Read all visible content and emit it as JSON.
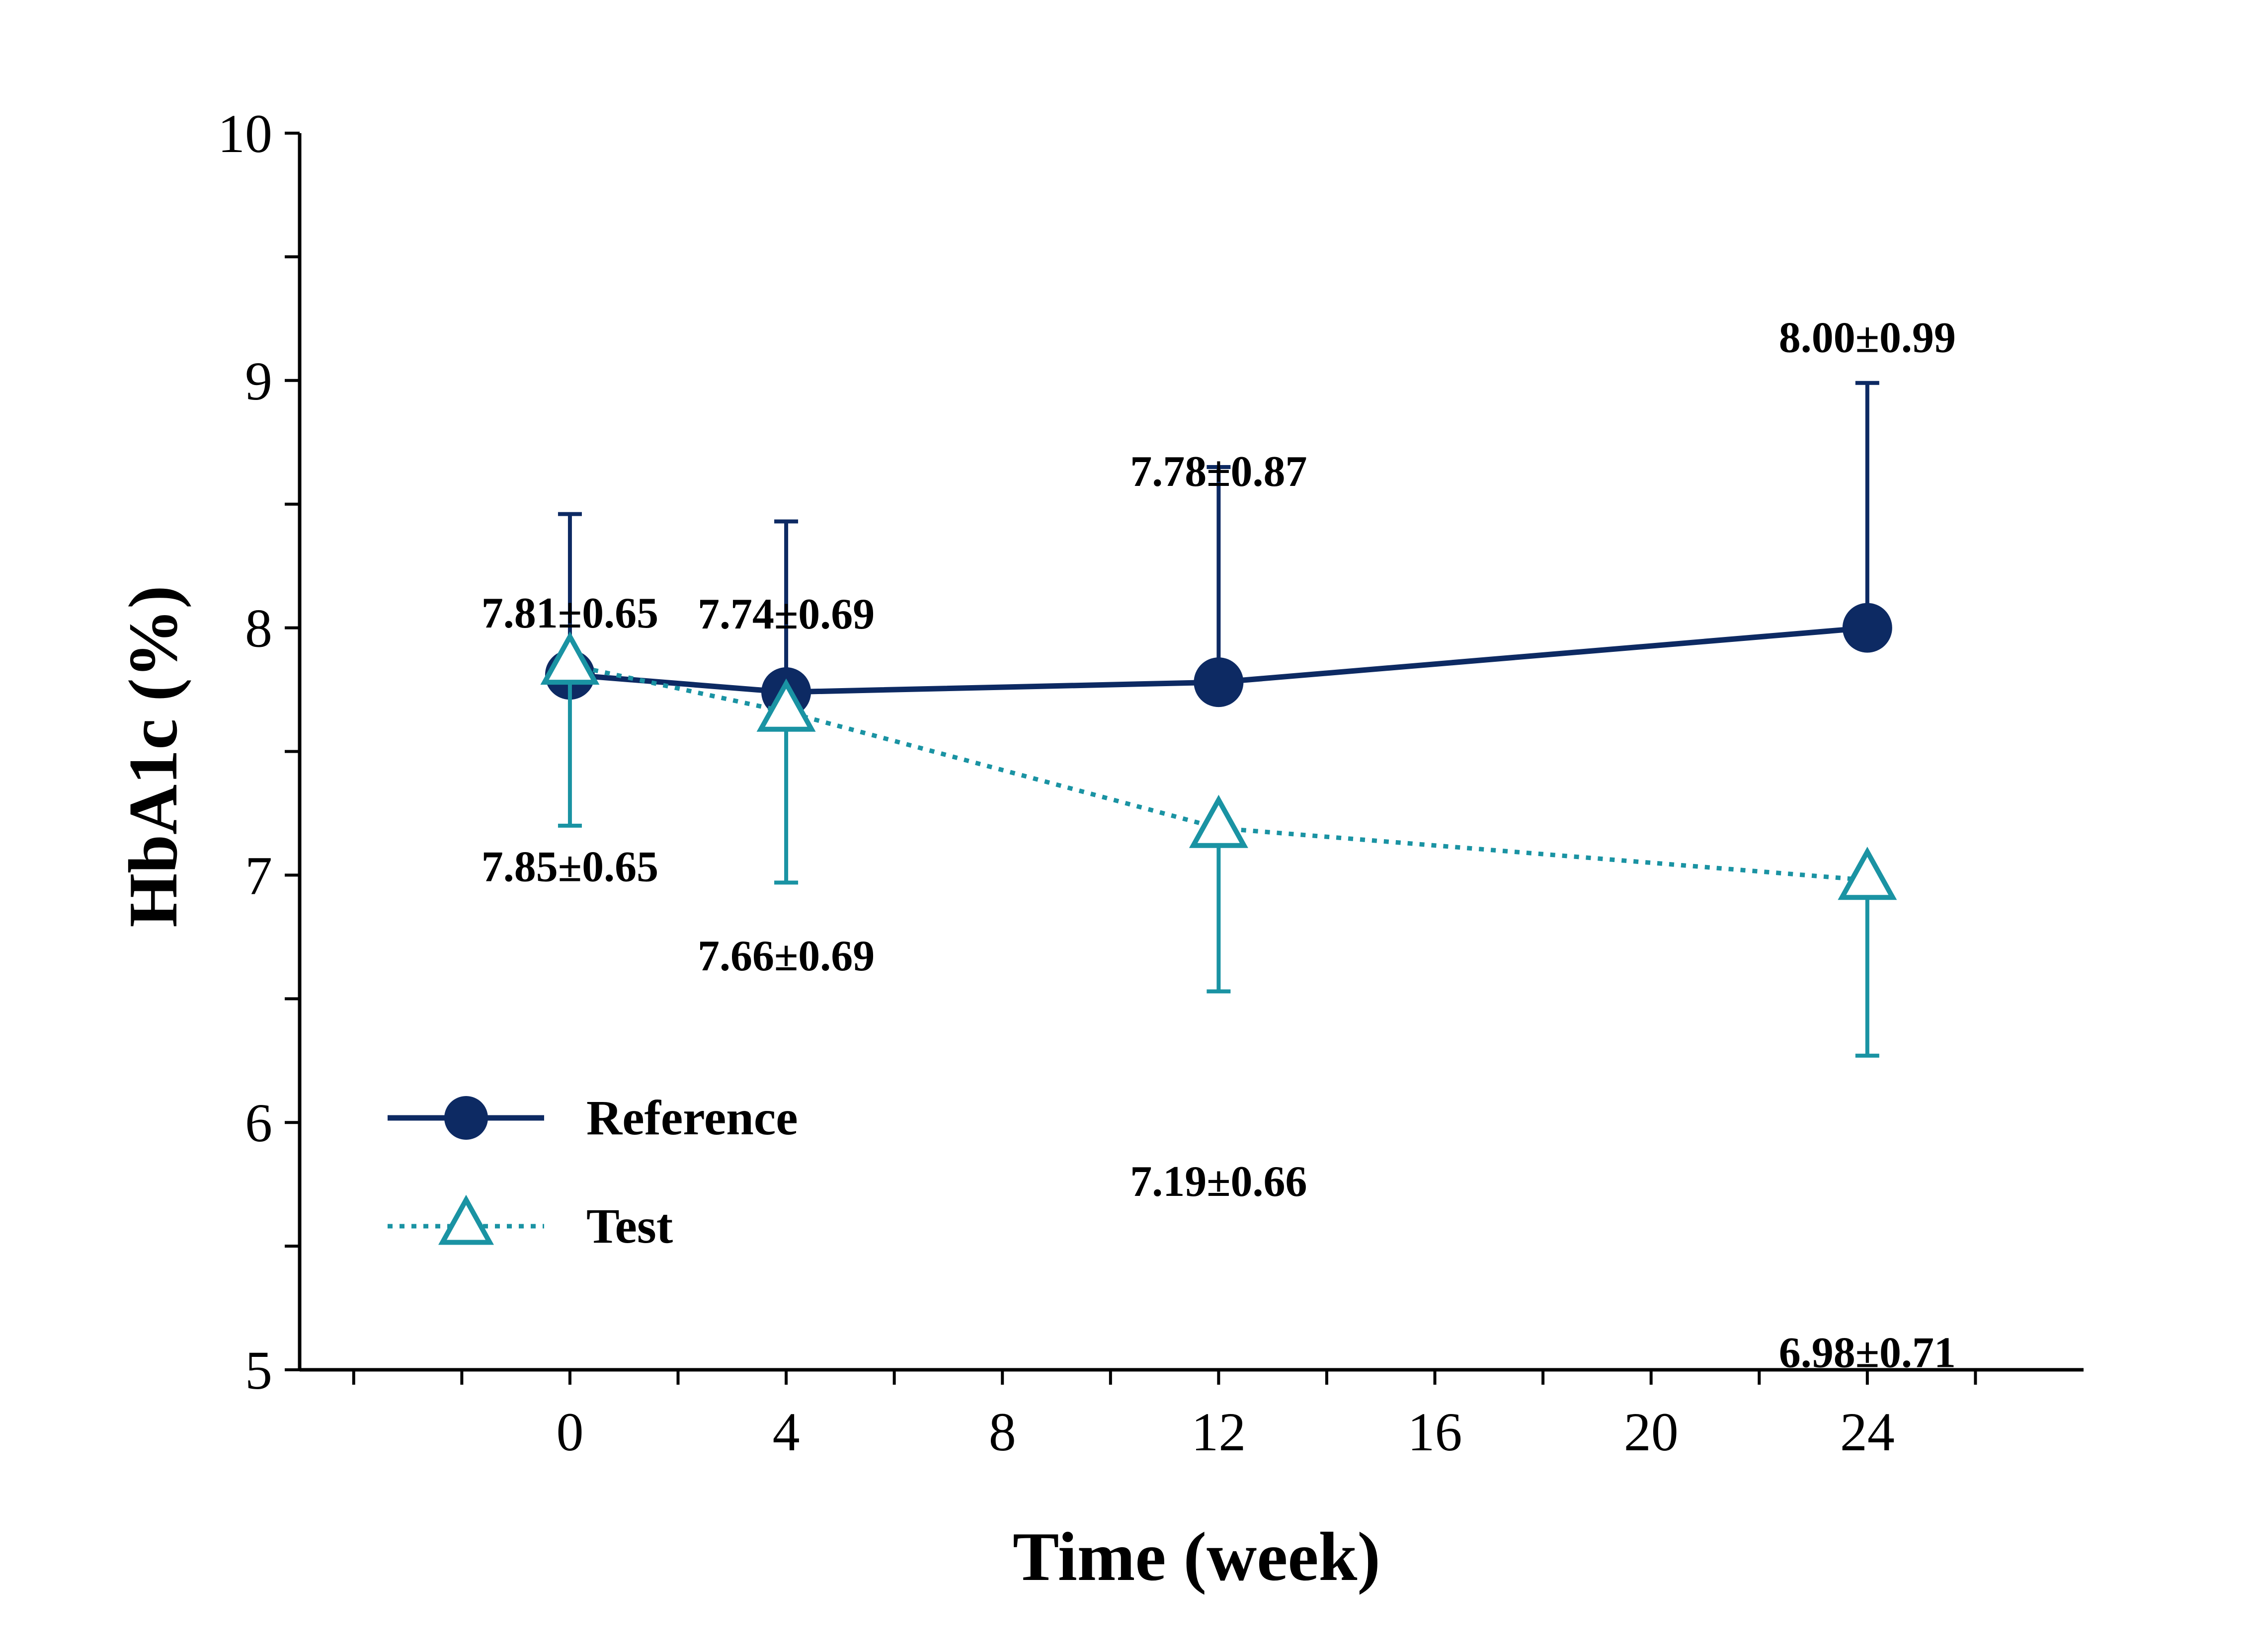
{
  "chart_data": {
    "type": "line",
    "title": "",
    "xlabel": "Time (week)",
    "ylabel": "HbA1c (%)",
    "xlim": [
      -5,
      28
    ],
    "ylim": [
      5,
      10
    ],
    "x_ticks": [
      0,
      4,
      8,
      12,
      16,
      20,
      24
    ],
    "y_ticks": [
      5,
      6,
      7,
      8,
      9,
      10
    ],
    "grid": false,
    "legend_position": "bottom-left",
    "series": [
      {
        "name": "Reference",
        "color": "#0d2a63",
        "line_style": "solid",
        "marker": "filled-circle",
        "error_direction": "up",
        "points": [
          {
            "x": 0,
            "y": 7.81,
            "sd": 0.65,
            "label": "7.81±0.65"
          },
          {
            "x": 4,
            "y": 7.74,
            "sd": 0.69,
            "label": "7.74±0.69"
          },
          {
            "x": 12,
            "y": 7.78,
            "sd": 0.87,
            "label": "7.78±0.87"
          },
          {
            "x": 24,
            "y": 8.0,
            "sd": 0.99,
            "label": "8.00±0.99"
          }
        ]
      },
      {
        "name": "Test",
        "color": "#1a93a3",
        "line_style": "dotted",
        "marker": "open-triangle",
        "error_direction": "down",
        "points": [
          {
            "x": 0,
            "y": 7.85,
            "sd": 0.65,
            "label": "7.85±0.65"
          },
          {
            "x": 4,
            "y": 7.66,
            "sd": 0.69,
            "label": "7.66±0.69"
          },
          {
            "x": 12,
            "y": 7.19,
            "sd": 0.66,
            "label": "7.19±0.66"
          },
          {
            "x": 24,
            "y": 6.98,
            "sd": 0.71,
            "label": "6.98±0.71"
          }
        ]
      }
    ]
  }
}
